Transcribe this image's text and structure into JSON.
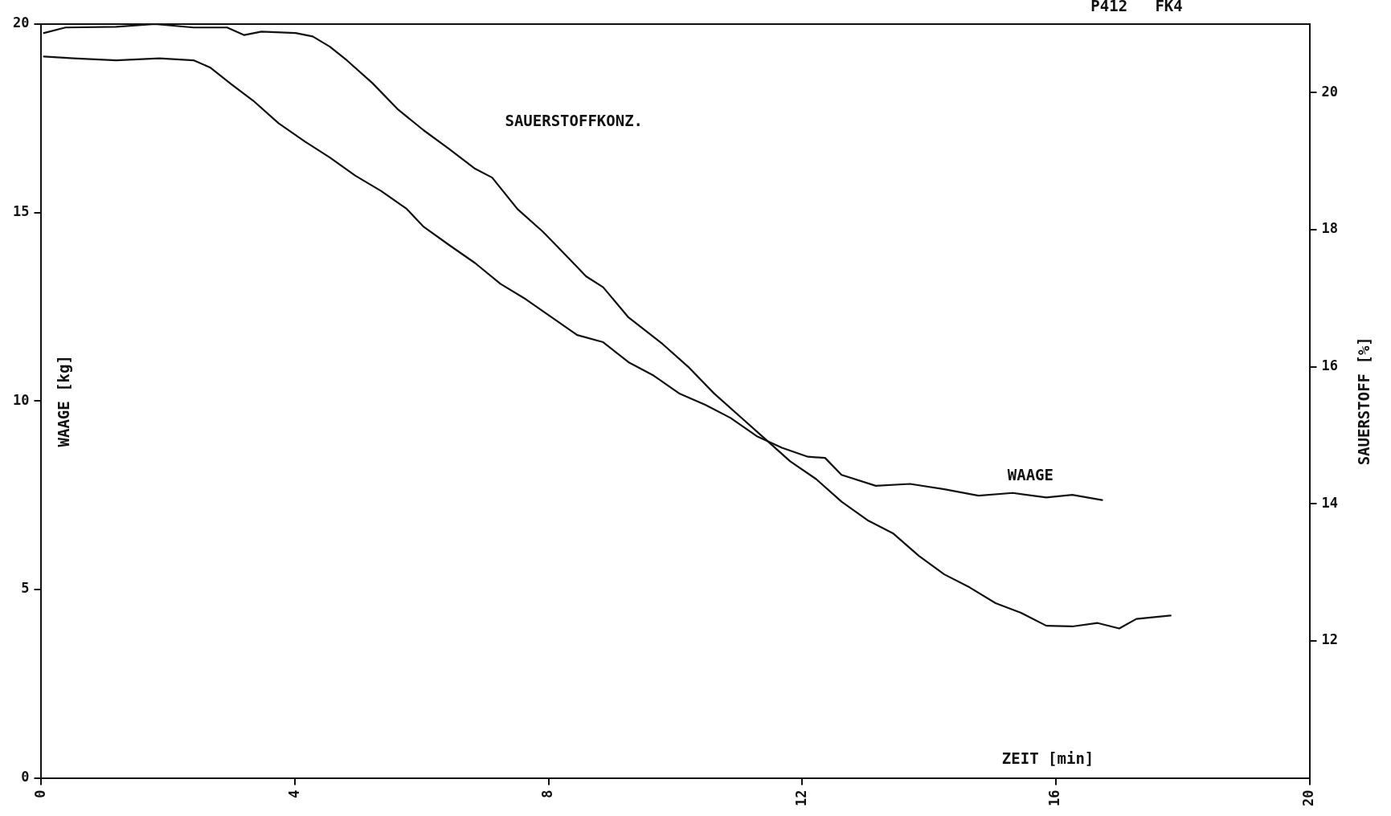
{
  "chart_data": {
    "type": "line",
    "xlabel": "ZEIT [min]",
    "ylabel": "WAAGE [kg]",
    "y2label": "SAUERSTOFF [%]",
    "xlim": [
      0,
      20
    ],
    "xticks": [
      0,
      4,
      8,
      12,
      16,
      20
    ],
    "ylim": [
      0,
      20
    ],
    "yticks": [
      0,
      5,
      10,
      15,
      20
    ],
    "y2lim": [
      10,
      21
    ],
    "y2ticks": [
      12,
      14,
      16,
      18,
      20
    ],
    "grid": false,
    "legend": false,
    "marker": "none",
    "line_style": "solid",
    "annotations": [
      "P412   FK4",
      "SAUERSTOFFKONZ.",
      "WAAGE"
    ],
    "series": [
      {
        "color": "#111111",
        "x": [
          0.04,
          0.51,
          1.18,
          1.86,
          2.4,
          2.66,
          3.0,
          3.34,
          3.74,
          4.15,
          4.55,
          4.95,
          5.36,
          5.76,
          6.03,
          6.43,
          6.84,
          7.24,
          7.64,
          8.05,
          8.45,
          8.86,
          9.26,
          9.66,
          10.07,
          10.47,
          10.87,
          11.28,
          11.68,
          12.09,
          12.36,
          12.62,
          13.16,
          13.7,
          14.24,
          14.78,
          15.32,
          15.85,
          16.26,
          16.73
        ],
        "values": [
          19.14,
          19.09,
          19.04,
          19.09,
          19.04,
          18.85,
          18.4,
          17.97,
          17.37,
          16.89,
          16.46,
          15.98,
          15.57,
          15.1,
          14.62,
          14.14,
          13.66,
          13.11,
          12.7,
          12.22,
          11.75,
          11.56,
          11.03,
          10.67,
          10.19,
          9.9,
          9.55,
          9.07,
          8.76,
          8.52,
          8.49,
          8.04,
          7.75,
          7.8,
          7.66,
          7.49,
          7.56,
          7.44,
          7.51,
          7.37
        ]
      },
      {
        "color": "#111111",
        "axis": "y2",
        "x": [
          0.04,
          0.38,
          1.18,
          1.79,
          2.4,
          2.93,
          3.2,
          3.47,
          4.01,
          4.28,
          4.55,
          4.82,
          5.22,
          5.63,
          6.03,
          6.43,
          6.84,
          7.11,
          7.51,
          7.91,
          8.32,
          8.59,
          8.86,
          9.26,
          9.8,
          10.2,
          10.61,
          11.01,
          11.41,
          11.81,
          12.22,
          12.62,
          13.03,
          13.43,
          13.84,
          14.24,
          14.64,
          15.05,
          15.45,
          15.85,
          16.26,
          16.66,
          17.0,
          17.27,
          17.81
        ],
        "values": [
          20.87,
          20.95,
          20.96,
          21.0,
          20.95,
          20.95,
          20.84,
          20.89,
          20.87,
          20.82,
          20.67,
          20.47,
          20.14,
          19.75,
          19.45,
          19.18,
          18.89,
          18.76,
          18.3,
          17.97,
          17.58,
          17.32,
          17.16,
          16.72,
          16.33,
          16.0,
          15.61,
          15.28,
          14.95,
          14.62,
          14.36,
          14.03,
          13.76,
          13.57,
          13.24,
          12.97,
          12.78,
          12.55,
          12.41,
          12.22,
          12.21,
          12.26,
          12.18,
          12.32,
          12.37
        ]
      }
    ]
  }
}
